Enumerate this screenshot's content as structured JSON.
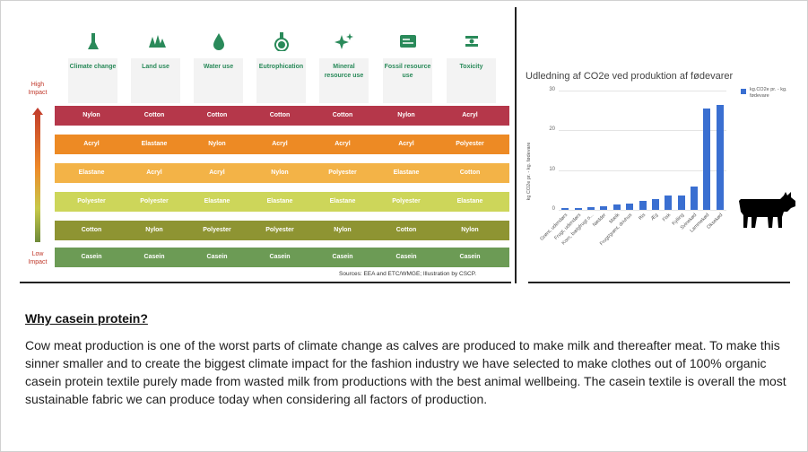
{
  "infographic": {
    "high_impact_label": "High\nImpact",
    "low_impact_label": "Low\nImpact",
    "categories": [
      {
        "label": "Climate change",
        "icon": "factory-icon"
      },
      {
        "label": "Land use",
        "icon": "trees-icon"
      },
      {
        "label": "Water use",
        "icon": "water-drop-icon"
      },
      {
        "label": "Eutrophication",
        "icon": "flask-icon"
      },
      {
        "label": "Mineral resource use",
        "icon": "sparkle-icon"
      },
      {
        "label": "Fossil resource use",
        "icon": "oil-pump-icon"
      },
      {
        "label": "Toxicity",
        "icon": "toxic-icon"
      }
    ],
    "rows": [
      {
        "color": "#b5374a",
        "cells": [
          "Nylon",
          "Cotton",
          "Cotton",
          "Cotton",
          "Cotton",
          "Nylon",
          "Acryl"
        ]
      },
      {
        "color": "#ed8a24",
        "cells": [
          "Acryl",
          "Elastane",
          "Nylon",
          "Acryl",
          "Acryl",
          "Acryl",
          "Polyester"
        ]
      },
      {
        "color": "#f3b347",
        "cells": [
          "Elastane",
          "Acryl",
          "Acryl",
          "Nylon",
          "Polyester",
          "Elastane",
          "Cotton"
        ]
      },
      {
        "color": "#cdd65a",
        "cells": [
          "Polyester",
          "Polyester",
          "Elastane",
          "Elastane",
          "Elastane",
          "Polyester",
          "Elastane"
        ]
      },
      {
        "color": "#8e9432",
        "cells": [
          "Cotton",
          "Nylon",
          "Polyester",
          "Polyester",
          "Nylon",
          "Cotton",
          "Nylon"
        ]
      },
      {
        "color": "#6c9b55",
        "cells": [
          "Casein",
          "Casein",
          "Casein",
          "Casein",
          "Casein",
          "Casein",
          "Casein"
        ]
      }
    ],
    "sources": "Sources: EEA and ETC/WMGE; Illustration by CSCP."
  },
  "chart_data": {
    "type": "bar",
    "title": "Udledning af CO2e ved  produktion af fødevarer",
    "ylabel": "kg CO2e pr. - kg. fødevare",
    "xlabel": "",
    "ylim": [
      0,
      30
    ],
    "yticks": [
      0,
      10,
      20,
      30
    ],
    "legend": "kg.CO2e pr. - kg. fødevare",
    "categories": [
      "Grønt, udendørs",
      "Frugt, udendørs",
      "Korn, bælgfrugt o...",
      "Nødder",
      "Mælk",
      "Frugt/grønt, drivhus",
      "Ris",
      "Æg",
      "Fisk",
      "Kylling",
      "Svinekød",
      "Lammekød",
      "Oksekød"
    ],
    "values": [
      0.4,
      0.5,
      0.7,
      0.9,
      1.4,
      1.6,
      2.3,
      2.8,
      3.6,
      3.7,
      5.8,
      25.5,
      26.5
    ]
  },
  "text": {
    "heading": "Why casein protein?",
    "paragraph": "Cow meat production is one of the worst parts of climate change as calves are produced to make milk and thereafter meat. To make this sinner smaller and to create the biggest climate impact for the fashion industry we have selected to make clothes out of 100% organic casein protein textile purely made from wasted milk from productions with the best animal wellbeing. The casein textile is overall the most sustainable fabric we can produce today when considering all factors of production."
  },
  "colors": {
    "accent_green": "#2a8a5a",
    "bar_blue": "#3a6fd1"
  }
}
